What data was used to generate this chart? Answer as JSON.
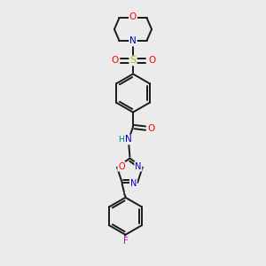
{
  "bg_color": "#ebebeb",
  "bond_color": "#1a1a1a",
  "colors": {
    "O": "#ff0000",
    "N": "#0000cc",
    "S": "#b8b800",
    "F": "#cc00cc",
    "H": "#008080",
    "C": "#1a1a1a"
  },
  "figsize": [
    3.0,
    3.0
  ],
  "dpi": 100
}
